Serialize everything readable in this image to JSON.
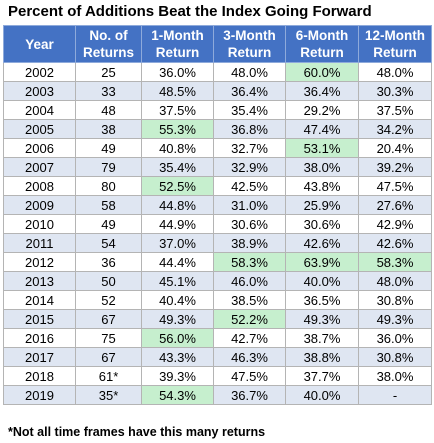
{
  "title": "Percent of Additions Beat the Index Going Forward",
  "footnote": "*Not all time frames have this many returns",
  "chart_data": {
    "type": "table",
    "title": "Percent of Additions Beat the Index Going Forward",
    "columns": [
      [
        "Year"
      ],
      [
        "No. of",
        "Returns"
      ],
      [
        "1-Month",
        "Return"
      ],
      [
        "3-Month",
        "Return"
      ],
      [
        "6-Month",
        "Return"
      ],
      [
        "12-Month",
        "Return"
      ]
    ],
    "rows": [
      [
        "2002",
        "25",
        "36.0%",
        "48.0%",
        "60.0%",
        "48.0%"
      ],
      [
        "2003",
        "33",
        "48.5%",
        "36.4%",
        "36.4%",
        "30.3%"
      ],
      [
        "2004",
        "48",
        "37.5%",
        "35.4%",
        "29.2%",
        "37.5%"
      ],
      [
        "2005",
        "38",
        "55.3%",
        "36.8%",
        "47.4%",
        "34.2%"
      ],
      [
        "2006",
        "49",
        "40.8%",
        "32.7%",
        "53.1%",
        "20.4%"
      ],
      [
        "2007",
        "79",
        "35.4%",
        "32.9%",
        "38.0%",
        "39.2%"
      ],
      [
        "2008",
        "80",
        "52.5%",
        "42.5%",
        "43.8%",
        "47.5%"
      ],
      [
        "2009",
        "58",
        "44.8%",
        "31.0%",
        "25.9%",
        "27.6%"
      ],
      [
        "2010",
        "49",
        "44.9%",
        "30.6%",
        "30.6%",
        "42.9%"
      ],
      [
        "2011",
        "54",
        "37.0%",
        "38.9%",
        "42.6%",
        "42.6%"
      ],
      [
        "2012",
        "36",
        "44.4%",
        "58.3%",
        "63.9%",
        "58.3%"
      ],
      [
        "2013",
        "50",
        "45.1%",
        "46.0%",
        "40.0%",
        "48.0%"
      ],
      [
        "2014",
        "52",
        "40.4%",
        "38.5%",
        "36.5%",
        "30.8%"
      ],
      [
        "2015",
        "67",
        "49.3%",
        "52.2%",
        "49.3%",
        "49.3%"
      ],
      [
        "2016",
        "75",
        "56.0%",
        "42.7%",
        "38.7%",
        "36.0%"
      ],
      [
        "2017",
        "67",
        "43.3%",
        "46.3%",
        "38.8%",
        "30.8%"
      ],
      [
        "2018",
        "61*",
        "39.3%",
        "47.5%",
        "37.7%",
        "38.0%"
      ],
      [
        "2019",
        "35*",
        "54.3%",
        "36.7%",
        "40.0%",
        "-"
      ]
    ],
    "highlighted_cells": [
      [
        0,
        4
      ],
      [
        3,
        2
      ],
      [
        4,
        4
      ],
      [
        6,
        2
      ],
      [
        10,
        3
      ],
      [
        10,
        4
      ],
      [
        10,
        5
      ],
      [
        13,
        3
      ],
      [
        14,
        2
      ],
      [
        18,
        2
      ]
    ],
    "colors": {
      "header_background": "#4472c4",
      "header_text": "#ffffff",
      "band_row": "#dfe6f2",
      "highlight": "#c6efce"
    }
  }
}
